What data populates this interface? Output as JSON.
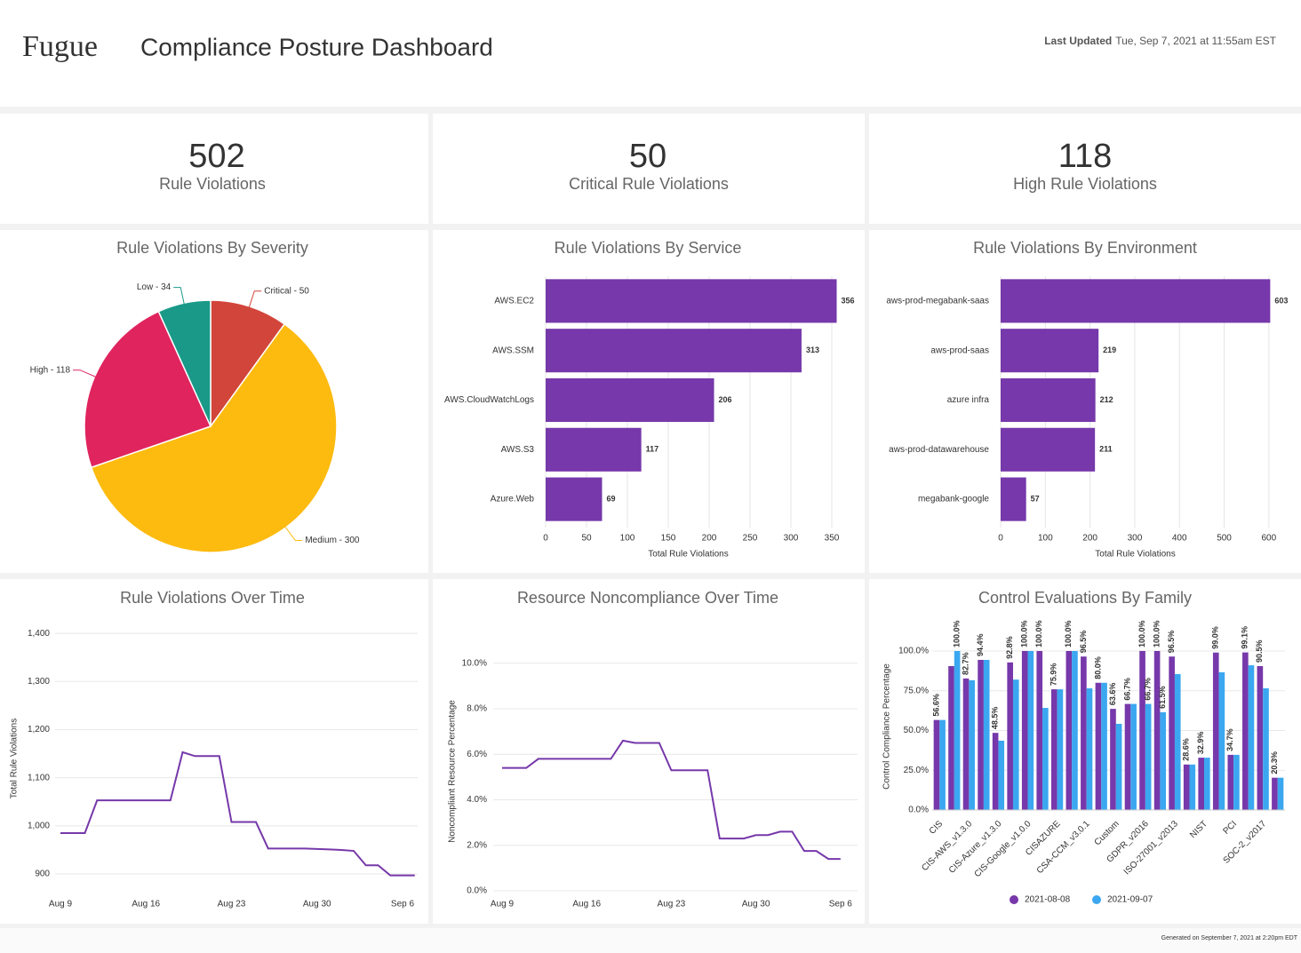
{
  "header": {
    "logo": "Fugue",
    "title": "Compliance Posture Dashboard",
    "updated_label": "Last Updated",
    "updated_value": "Tue, Sep 7, 2021 at 11:55am EST"
  },
  "kpis": [
    {
      "value": 502,
      "label": "Rule Violations"
    },
    {
      "value": 50,
      "label": "Critical Rule Violations"
    },
    {
      "value": 118,
      "label": "High Rule Violations"
    }
  ],
  "footer": "Generated on September 7, 2021 at 2:20pm EDT",
  "chart_data": [
    {
      "type": "pie",
      "title": "Rule Violations By Severity",
      "values": [
        50,
        300,
        118,
        34
      ],
      "value_labels": [
        "Critical - 50",
        "Medium - 300",
        "High - 118",
        "Low - 34"
      ],
      "colors": [
        "#d2453a",
        "#fdbb10",
        "#e0245e",
        "#1a9988"
      ]
    },
    {
      "type": "hbar",
      "title": "Rule Violations By Service",
      "categories": [
        "AWS.EC2",
        "AWS.SSM",
        "AWS.CloudWatchLogs",
        "AWS.S3",
        "Azure.Web"
      ],
      "values": [
        356,
        313,
        206,
        117,
        69
      ],
      "color": "#7638aa",
      "xlabel": "Total Rule Violations",
      "xlim": [
        0,
        375
      ],
      "xticks": [
        0,
        50,
        100,
        150,
        200,
        250,
        300,
        350
      ],
      "grid": true
    },
    {
      "type": "hbar",
      "title": "Rule Violations By Environment",
      "categories": [
        "aws-prod-megabank-saas",
        "aws-prod-saas",
        "azure infra",
        "aws-prod-datawarehouse",
        "megabank-google"
      ],
      "values": [
        603,
        219,
        212,
        211,
        57
      ],
      "color": "#7638aa",
      "xlabel": "Total Rule Violations",
      "xlim": [
        0,
        650
      ],
      "xticks": [
        0,
        100,
        200,
        300,
        400,
        500,
        600
      ],
      "grid": true
    },
    {
      "type": "line",
      "title": "Rule Violations Over Time",
      "ylabel": "Total Rule Violations",
      "color": "#7638aa",
      "x": [
        "Aug 9",
        "Aug 10",
        "Aug 11",
        "Aug 12",
        "Aug 13",
        "Aug 14",
        "Aug 15",
        "Aug 16",
        "Aug 17",
        "Aug 18",
        "Aug 19",
        "Aug 20",
        "Aug 21",
        "Aug 22",
        "Aug 23",
        "Aug 24",
        "Aug 25",
        "Aug 26",
        "Aug 27",
        "Aug 28",
        "Aug 29",
        "Aug 30",
        "Aug 31",
        "Sep 1",
        "Sep 2",
        "Sep 3",
        "Sep 4",
        "Sep 5",
        "Sep 6",
        "Sep 7"
      ],
      "values": [
        985,
        985,
        985,
        1053,
        1053,
        1053,
        1053,
        1053,
        1053,
        1053,
        1153,
        1145,
        1145,
        1145,
        1008,
        1008,
        1008,
        953,
        953,
        953,
        953,
        952,
        951,
        950,
        948,
        918,
        918,
        897,
        897,
        897
      ],
      "xticks": [
        "Aug 9",
        "Aug 16",
        "Aug 23",
        "Aug 30",
        "Sep 6"
      ],
      "ylim": [
        865,
        1415
      ],
      "yticks": [
        900,
        {
          "value": 1000,
          "label": "1,000"
        },
        {
          "value": 1100,
          "label": "1,100"
        },
        {
          "value": 1200,
          "label": "1,200"
        },
        {
          "value": 1300,
          "label": "1,300"
        },
        {
          "value": 1400,
          "label": "1,400"
        }
      ],
      "grid": true
    },
    {
      "type": "line",
      "title": "Resource Noncompliance Over Time",
      "ylabel": "Noncompliant Resource Percentage",
      "color": "#7638aa",
      "x": [
        "Aug 9",
        "Aug 10",
        "Aug 11",
        "Aug 12",
        "Aug 13",
        "Aug 14",
        "Aug 15",
        "Aug 16",
        "Aug 17",
        "Aug 18",
        "Aug 19",
        "Aug 20",
        "Aug 21",
        "Aug 22",
        "Aug 23",
        "Aug 24",
        "Aug 25",
        "Aug 26",
        "Aug 27",
        "Aug 28",
        "Aug 29",
        "Aug 30",
        "Aug 31",
        "Sep 1",
        "Sep 2",
        "Sep 3",
        "Sep 4",
        "Sep 5",
        "Sep 6"
      ],
      "values": [
        5.4,
        5.4,
        5.4,
        5.8,
        5.8,
        5.8,
        5.8,
        5.8,
        5.8,
        5.8,
        6.6,
        6.5,
        6.5,
        6.5,
        5.3,
        5.3,
        5.3,
        5.3,
        2.3,
        2.3,
        2.3,
        2.45,
        2.45,
        2.6,
        2.6,
        1.75,
        1.75,
        1.4,
        1.4
      ],
      "xticks": [
        "Aug 9",
        "Aug 16",
        "Aug 23",
        "Aug 30",
        "Sep 6"
      ],
      "ylim": [
        0,
        10.5
      ],
      "yticks": [
        {
          "value": 0,
          "label": "0.0%"
        },
        {
          "value": 2,
          "label": "2.0%"
        },
        {
          "value": 4,
          "label": "4.0%"
        },
        {
          "value": 6,
          "label": "6.0%"
        },
        {
          "value": 8,
          "label": "8.0%"
        },
        {
          "value": 10,
          "label": "10.0%"
        }
      ],
      "grid": true
    },
    {
      "type": "grouped_bar",
      "title": "Control Evaluations By Family",
      "ylabel": "Control Compliance Percentage",
      "categories": [
        "CIS",
        null,
        "CIS-AWS_v1.3.0",
        null,
        "CIS-Azure_v1.3.0",
        null,
        "CIS-Google_v1.0.0",
        null,
        "CISAZURE",
        null,
        "CSA-CCM_v3.0.1",
        null,
        "Custom",
        null,
        "GDPR_v2016",
        null,
        "ISO-27001_v2013",
        null,
        "NIST",
        null,
        "PCI",
        null,
        "SOC-2_v2017",
        null
      ],
      "series": [
        {
          "name": "2021-08-08",
          "color": "#7638aa",
          "values": [
            56.6,
            90.5,
            82.7,
            94.4,
            48.5,
            92.8,
            100,
            100,
            75.9,
            100,
            96.5,
            80,
            63.6,
            66.7,
            100,
            100,
            96.5,
            28.6,
            32.9,
            99,
            34.7,
            99.1,
            90.5,
            20.3
          ],
          "value_labels": [
            "56.6%",
            null,
            "82.7%",
            "94.4%",
            "48.5%",
            "92.8%",
            "100.0%",
            "100.0%",
            "75.9%",
            "100.0%",
            "96.5%",
            "80.0%",
            "63.6%",
            "66.7%",
            "100.0%",
            "100.0%",
            "96.5%",
            "28.6%",
            "32.9%",
            "99.0%",
            "34.7%",
            "99.1%",
            "90.5%",
            "20.3%"
          ]
        },
        {
          "name": "2021-09-07",
          "color": "#3ba7f0",
          "values": [
            56.6,
            100,
            81.6,
            94.4,
            43.6,
            82,
            100,
            64.2,
            75.9,
            100,
            76.5,
            80,
            54.2,
            66.7,
            66.7,
            61.5,
            85.5,
            28.6,
            32.9,
            86.6,
            34.7,
            91,
            76.5,
            20.3
          ],
          "value_labels": [
            null,
            "100.0%",
            null,
            null,
            null,
            null,
            null,
            null,
            null,
            null,
            null,
            null,
            null,
            null,
            "66.7%",
            "61.5%",
            null,
            null,
            null,
            null,
            null,
            null,
            null,
            null
          ]
        }
      ],
      "ylim": [
        0,
        105
      ],
      "yticks": [
        {
          "value": 0,
          "label": "0.0%"
        },
        {
          "value": 25,
          "label": "25.0%"
        },
        {
          "value": 50,
          "label": "50.0%"
        },
        {
          "value": 75,
          "label": "75.0%"
        },
        {
          "value": 100,
          "label": "100.0%"
        }
      ],
      "grid": true,
      "legend": "bottom"
    }
  ]
}
